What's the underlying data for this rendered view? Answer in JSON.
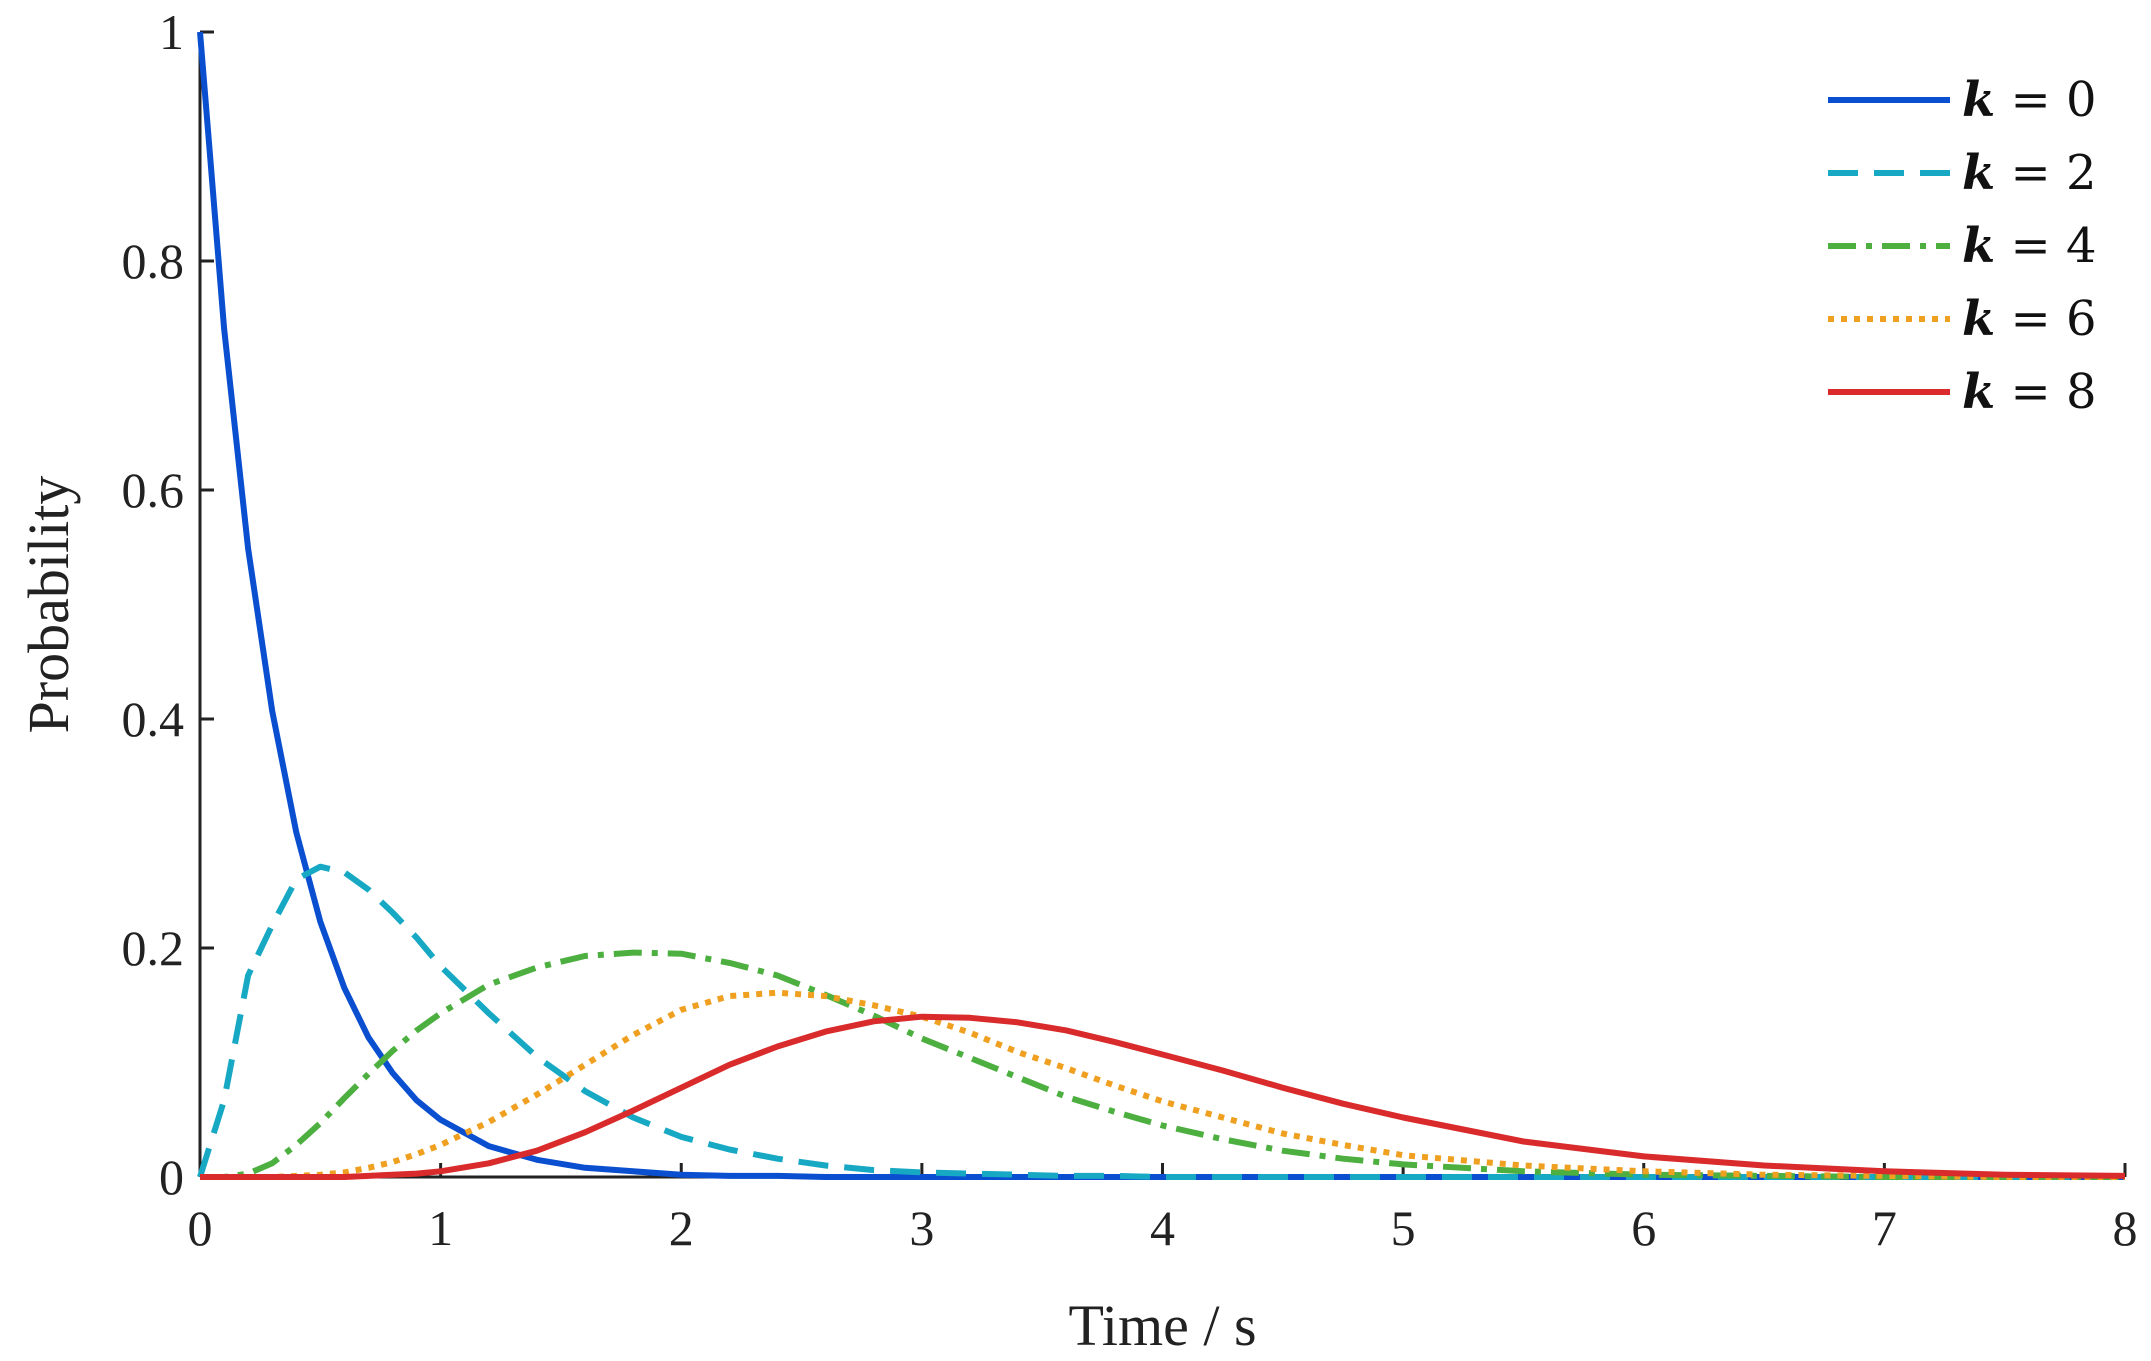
{
  "chart_data": {
    "type": "line",
    "title": "",
    "xlabel": "Time / s",
    "ylabel": "Probability",
    "xlim": [
      0,
      8
    ],
    "ylim": [
      0,
      1
    ],
    "xticks": [
      "0",
      "1",
      "2",
      "3",
      "4",
      "5",
      "6",
      "7",
      "8"
    ],
    "yticks": [
      "0",
      "0.2",
      "0.4",
      "0.6",
      "0.8",
      "1"
    ],
    "grid": false,
    "legend_position": "top-right",
    "x": [
      0,
      0.1,
      0.2,
      0.3,
      0.4,
      0.5,
      0.6,
      0.7,
      0.8,
      0.9,
      1.0,
      1.2,
      1.4,
      1.6,
      1.8,
      2.0,
      2.2,
      2.4,
      2.6,
      2.8,
      3.0,
      3.2,
      3.4,
      3.6,
      3.8,
      4.0,
      4.25,
      4.5,
      4.75,
      5.0,
      5.5,
      6.0,
      6.5,
      7.0,
      7.5,
      8.0
    ],
    "series": [
      {
        "name": "k = 0",
        "var": "k",
        "eq": " = 0",
        "color": "#0a4fd0",
        "style": "solid",
        "values": [
          1.0,
          0.741,
          0.549,
          0.407,
          0.301,
          0.223,
          0.165,
          0.122,
          0.091,
          0.067,
          0.05,
          0.027,
          0.015,
          0.008,
          0.005,
          0.002,
          0.001,
          0.001,
          0.0,
          0.0,
          0.0,
          0.0,
          0.0,
          0.0,
          0.0,
          0.0,
          0.0,
          0.0,
          0.0,
          0.0,
          0.0,
          0.0,
          0.0,
          0.0,
          0.0,
          0.0
        ]
      },
      {
        "name": "k = 2",
        "var": "k",
        "eq": " = 2",
        "color": "#17a8c4",
        "style": "dashed",
        "values": [
          0.0,
          0.067,
          0.176,
          0.22,
          0.26,
          0.271,
          0.266,
          0.251,
          0.231,
          0.209,
          0.184,
          0.143,
          0.105,
          0.075,
          0.052,
          0.035,
          0.024,
          0.016,
          0.01,
          0.006,
          0.004,
          0.003,
          0.002,
          0.001,
          0.001,
          0.0,
          0.0,
          0.0,
          0.0,
          0.0,
          0.0,
          0.0,
          0.0,
          0.0,
          0.0,
          0.0
        ]
      },
      {
        "name": "k = 4",
        "var": "k",
        "eq": " = 4",
        "color": "#4caf3f",
        "style": "dashdot",
        "values": [
          0.0,
          0.0,
          0.003,
          0.012,
          0.028,
          0.047,
          0.069,
          0.09,
          0.11,
          0.128,
          0.143,
          0.168,
          0.183,
          0.193,
          0.196,
          0.195,
          0.187,
          0.176,
          0.159,
          0.141,
          0.121,
          0.104,
          0.087,
          0.07,
          0.057,
          0.045,
          0.033,
          0.023,
          0.016,
          0.011,
          0.005,
          0.002,
          0.001,
          0.0,
          0.0,
          0.0
        ]
      },
      {
        "name": "k = 6",
        "var": "k",
        "eq": " = 6",
        "color": "#f0a020",
        "style": "dotted",
        "values": [
          0.0,
          0.0,
          0.0,
          0.0,
          0.001,
          0.002,
          0.004,
          0.008,
          0.013,
          0.02,
          0.028,
          0.048,
          0.072,
          0.098,
          0.124,
          0.146,
          0.158,
          0.161,
          0.158,
          0.15,
          0.14,
          0.126,
          0.109,
          0.095,
          0.08,
          0.066,
          0.052,
          0.038,
          0.028,
          0.019,
          0.01,
          0.005,
          0.002,
          0.001,
          0.0,
          0.0
        ]
      },
      {
        "name": "k = 8",
        "var": "k",
        "eq": " = 8",
        "color": "#d92b2b",
        "style": "solid",
        "values": [
          0.0,
          0.0,
          0.0,
          0.0,
          0.0,
          0.0,
          0.0,
          0.001,
          0.002,
          0.003,
          0.005,
          0.012,
          0.023,
          0.039,
          0.058,
          0.078,
          0.098,
          0.114,
          0.127,
          0.136,
          0.14,
          0.139,
          0.135,
          0.128,
          0.118,
          0.107,
          0.093,
          0.078,
          0.064,
          0.052,
          0.031,
          0.018,
          0.01,
          0.005,
          0.002,
          0.001
        ]
      }
    ]
  }
}
